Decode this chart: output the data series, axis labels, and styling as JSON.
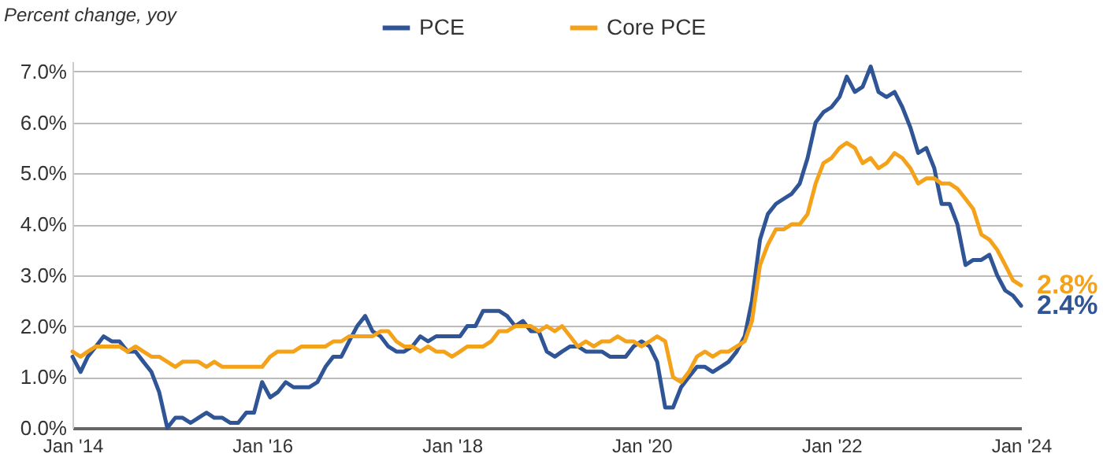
{
  "chart_data": {
    "type": "line",
    "ylabel": "Percent change, yoy",
    "legend": "top",
    "grid": "y",
    "marker": "none",
    "line_style": "solid",
    "xlim": [
      "2014-01",
      "2024-01"
    ],
    "xticks": [
      {
        "value": "2014-01",
        "label": "Jan '14"
      },
      {
        "value": "2016-01",
        "label": "Jan '16"
      },
      {
        "value": "2018-01",
        "label": "Jan '18"
      },
      {
        "value": "2020-01",
        "label": "Jan '20"
      },
      {
        "value": "2022-01",
        "label": "Jan '22"
      },
      {
        "value": "2024-01",
        "label": "Jan '24"
      }
    ],
    "ylim": [
      0,
      7.2
    ],
    "yticks": [
      {
        "value": 0,
        "label": "0.0%"
      },
      {
        "value": 1,
        "label": "1.0%"
      },
      {
        "value": 2,
        "label": "2.0%"
      },
      {
        "value": 3,
        "label": "3.0%"
      },
      {
        "value": 4,
        "label": "4.0%"
      },
      {
        "value": 5,
        "label": "5.0%"
      },
      {
        "value": 6,
        "label": "6.0%"
      },
      {
        "value": 7,
        "label": "7.0%"
      }
    ],
    "x": [
      "2014-01",
      "2014-02",
      "2014-03",
      "2014-04",
      "2014-05",
      "2014-06",
      "2014-07",
      "2014-08",
      "2014-09",
      "2014-10",
      "2014-11",
      "2014-12",
      "2015-01",
      "2015-02",
      "2015-03",
      "2015-04",
      "2015-05",
      "2015-06",
      "2015-07",
      "2015-08",
      "2015-09",
      "2015-10",
      "2015-11",
      "2015-12",
      "2016-01",
      "2016-02",
      "2016-03",
      "2016-04",
      "2016-05",
      "2016-06",
      "2016-07",
      "2016-08",
      "2016-09",
      "2016-10",
      "2016-11",
      "2016-12",
      "2017-01",
      "2017-02",
      "2017-03",
      "2017-04",
      "2017-05",
      "2017-06",
      "2017-07",
      "2017-08",
      "2017-09",
      "2017-10",
      "2017-11",
      "2017-12",
      "2018-01",
      "2018-02",
      "2018-03",
      "2018-04",
      "2018-05",
      "2018-06",
      "2018-07",
      "2018-08",
      "2018-09",
      "2018-10",
      "2018-11",
      "2018-12",
      "2019-01",
      "2019-02",
      "2019-03",
      "2019-04",
      "2019-05",
      "2019-06",
      "2019-07",
      "2019-08",
      "2019-09",
      "2019-10",
      "2019-11",
      "2019-12",
      "2020-01",
      "2020-02",
      "2020-03",
      "2020-04",
      "2020-05",
      "2020-06",
      "2020-07",
      "2020-08",
      "2020-09",
      "2020-10",
      "2020-11",
      "2020-12",
      "2021-01",
      "2021-02",
      "2021-03",
      "2021-04",
      "2021-05",
      "2021-06",
      "2021-07",
      "2021-08",
      "2021-09",
      "2021-10",
      "2021-11",
      "2021-12",
      "2022-01",
      "2022-02",
      "2022-03",
      "2022-04",
      "2022-05",
      "2022-06",
      "2022-07",
      "2022-08",
      "2022-09",
      "2022-10",
      "2022-11",
      "2022-12",
      "2023-01",
      "2023-02",
      "2023-03",
      "2023-04",
      "2023-05",
      "2023-06",
      "2023-07",
      "2023-08",
      "2023-09",
      "2023-10",
      "2023-11",
      "2023-12",
      "2024-01"
    ],
    "series": [
      {
        "name": "PCE",
        "color": "#2f5597",
        "values": [
          1.4,
          1.1,
          1.4,
          1.6,
          1.8,
          1.7,
          1.7,
          1.5,
          1.5,
          1.3,
          1.1,
          0.7,
          0.0,
          0.2,
          0.2,
          0.1,
          0.2,
          0.3,
          0.2,
          0.2,
          0.1,
          0.1,
          0.3,
          0.3,
          0.9,
          0.6,
          0.7,
          0.9,
          0.8,
          0.8,
          0.8,
          0.9,
          1.2,
          1.4,
          1.4,
          1.7,
          2.0,
          2.2,
          1.9,
          1.8,
          1.6,
          1.5,
          1.5,
          1.6,
          1.8,
          1.7,
          1.8,
          1.8,
          1.8,
          1.8,
          2.0,
          2.0,
          2.3,
          2.3,
          2.3,
          2.2,
          2.0,
          2.1,
          1.9,
          1.9,
          1.5,
          1.4,
          1.5,
          1.6,
          1.6,
          1.5,
          1.5,
          1.5,
          1.4,
          1.4,
          1.4,
          1.6,
          1.7,
          1.6,
          1.3,
          0.4,
          0.4,
          0.8,
          1.0,
          1.2,
          1.2,
          1.1,
          1.2,
          1.3,
          1.5,
          1.8,
          2.5,
          3.7,
          4.2,
          4.4,
          4.5,
          4.6,
          4.8,
          5.3,
          6.0,
          6.2,
          6.3,
          6.5,
          6.9,
          6.6,
          6.7,
          7.1,
          6.6,
          6.5,
          6.6,
          6.3,
          5.9,
          5.4,
          5.5,
          5.1,
          4.4,
          4.4,
          4.0,
          3.2,
          3.3,
          3.3,
          3.4,
          3.0,
          2.7,
          2.6,
          2.4
        ]
      },
      {
        "name": "Core PCE",
        "color": "#f5a21b",
        "values": [
          1.5,
          1.4,
          1.5,
          1.6,
          1.6,
          1.6,
          1.6,
          1.5,
          1.6,
          1.5,
          1.4,
          1.4,
          1.3,
          1.2,
          1.3,
          1.3,
          1.3,
          1.2,
          1.3,
          1.2,
          1.2,
          1.2,
          1.2,
          1.2,
          1.2,
          1.4,
          1.5,
          1.5,
          1.5,
          1.6,
          1.6,
          1.6,
          1.6,
          1.7,
          1.7,
          1.8,
          1.8,
          1.8,
          1.8,
          1.9,
          1.9,
          1.7,
          1.6,
          1.6,
          1.5,
          1.6,
          1.5,
          1.5,
          1.4,
          1.5,
          1.6,
          1.6,
          1.6,
          1.7,
          1.9,
          1.9,
          2.0,
          2.0,
          2.0,
          1.9,
          2.0,
          1.9,
          2.0,
          1.8,
          1.6,
          1.7,
          1.6,
          1.7,
          1.7,
          1.8,
          1.7,
          1.7,
          1.6,
          1.7,
          1.8,
          1.7,
          1.0,
          0.9,
          1.1,
          1.4,
          1.5,
          1.4,
          1.5,
          1.5,
          1.6,
          1.7,
          2.1,
          3.2,
          3.6,
          3.9,
          3.9,
          4.0,
          4.0,
          4.2,
          4.8,
          5.2,
          5.3,
          5.5,
          5.6,
          5.5,
          5.2,
          5.3,
          5.1,
          5.2,
          5.4,
          5.3,
          5.1,
          4.8,
          4.9,
          4.9,
          4.8,
          4.8,
          4.7,
          4.5,
          4.3,
          3.8,
          3.7,
          3.5,
          3.2,
          2.9,
          2.8
        ]
      }
    ],
    "annotations": [
      {
        "text": "2.8%",
        "x": "2024-01",
        "y": 2.8
      },
      {
        "text": "2.4%",
        "x": "2024-01",
        "y": 2.4
      }
    ]
  }
}
